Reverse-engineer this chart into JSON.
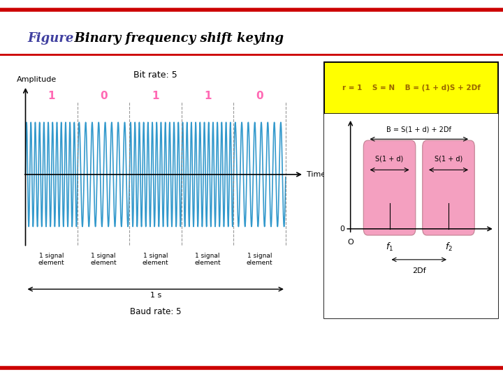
{
  "title_figure": "Figure",
  "title_main": "  Binary frequency shift keying",
  "title_color_figure": "#4040A0",
  "title_color_main": "#000000",
  "bg_color": "#FFFFFF",
  "red_line_color": "#CC0000",
  "bit_rate_text": "Bit rate: 5",
  "baud_rate_text": "Baud rate: 5",
  "time_label": "Time",
  "amplitude_label": "Amplitude",
  "bits": [
    "1",
    "0",
    "1",
    "1",
    "0"
  ],
  "bit_color": "#FF69B4",
  "one_second_text": "1 s",
  "wave_color": "#3399CC",
  "wave_freq_low": 8,
  "wave_freq_high": 12,
  "yellow_bg": "#FFFF00",
  "formula_top": "r = 1    S = N    B = (1 + d)S + 2Df",
  "formula_top_color": "#996600",
  "formula_B": "B = S(1 + d) + 2Df",
  "formula_S1d": "S(1 + d)",
  "formula_2Df": "2Df",
  "pink_fill": "#F4A0C0",
  "pink_edge": "#C08090"
}
